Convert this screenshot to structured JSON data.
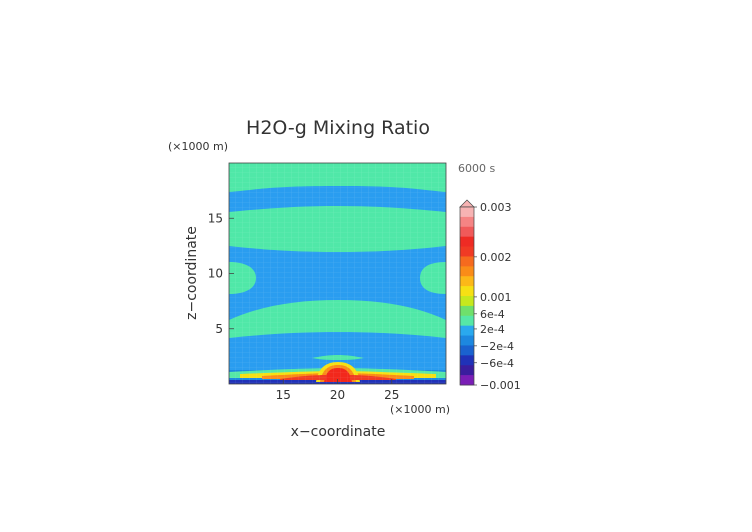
{
  "chart_data": {
    "type": "heatmap",
    "title": "H2O-g Mixing Ratio",
    "time_label": "6000 s",
    "xlabel": "x−coordinate",
    "ylabel": "z−coordinate",
    "x_unit": "(×1000 m)",
    "y_unit": "(×1000 m)",
    "xlim": [
      10,
      30
    ],
    "ylim": [
      0,
      20
    ],
    "x_ticks": [
      15,
      20,
      25
    ],
    "y_ticks": [
      5,
      10,
      15
    ],
    "colorbar": {
      "labels": [
        "0.003",
        "0.002",
        "0.001",
        "6e-4",
        "2e-4",
        "−2e-4",
        "−6e-4",
        "−0.001"
      ],
      "levels": [
        0.003,
        0.002,
        0.001,
        0.0006,
        0.0002,
        -0.0002,
        -0.0006,
        -0.001
      ],
      "colors": [
        "#f7b3b3",
        "#f58484",
        "#f05a5a",
        "#ee2b24",
        "#f03a24",
        "#f66a1e",
        "#fa8c18",
        "#fcb818",
        "#f6e014",
        "#c6e81e",
        "#6fe06b",
        "#56e7a6",
        "#2aa9ee",
        "#1d88e0",
        "#1a62cf",
        "#2032b8",
        "#3a1d9e",
        "#7a1eb6"
      ]
    },
    "grid": true,
    "field_description_colors": {
      "background": "#2a9df0",
      "band": "#50e8a8",
      "surface_peak": "#f2281c"
    }
  }
}
